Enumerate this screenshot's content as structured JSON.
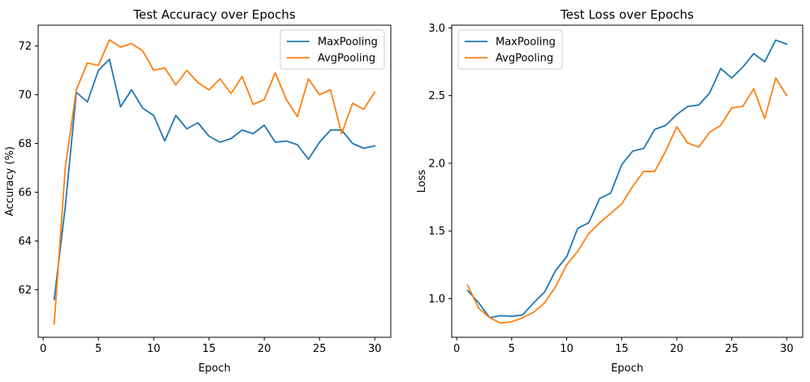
{
  "chart_data": [
    {
      "type": "line",
      "title": "Test Accuracy over Epochs",
      "xlabel": "Epoch",
      "ylabel": "Accuracy (%)",
      "xlim": [
        -0.45,
        31.45
      ],
      "ylim": [
        60.05,
        72.85
      ],
      "xticks": [
        0,
        5,
        10,
        15,
        20,
        25,
        30
      ],
      "xtick_labels": [
        "0",
        "5",
        "10",
        "15",
        "20",
        "25",
        "30"
      ],
      "yticks": [
        62,
        64,
        66,
        68,
        70,
        72
      ],
      "ytick_labels": [
        "62",
        "64",
        "66",
        "68",
        "70",
        "72"
      ],
      "legend": "upper right",
      "grid": false,
      "x": [
        1,
        2,
        3,
        4,
        5,
        6,
        7,
        8,
        9,
        10,
        11,
        12,
        13,
        14,
        15,
        16,
        17,
        18,
        19,
        20,
        21,
        22,
        23,
        24,
        25,
        26,
        27,
        28,
        29,
        30
      ],
      "series": [
        {
          "name": "MaxPooling",
          "color": "#1f77b4",
          "values": [
            61.6,
            65.4,
            70.1,
            69.7,
            71.0,
            71.45,
            69.5,
            70.2,
            69.45,
            69.15,
            68.1,
            69.15,
            68.6,
            68.85,
            68.3,
            68.05,
            68.2,
            68.55,
            68.4,
            68.75,
            68.05,
            68.1,
            67.95,
            67.35,
            68.05,
            68.55,
            68.55,
            68.0,
            67.8,
            67.9
          ]
        },
        {
          "name": "AvgPooling",
          "color": "#ff7f0e",
          "values": [
            60.6,
            67.0,
            70.2,
            71.3,
            71.2,
            72.25,
            71.95,
            72.1,
            71.8,
            71.0,
            71.1,
            70.4,
            71.0,
            70.5,
            70.2,
            70.65,
            70.05,
            70.75,
            69.6,
            69.8,
            70.9,
            69.8,
            69.1,
            70.65,
            70.0,
            70.2,
            68.4,
            69.65,
            69.4,
            70.1
          ]
        }
      ]
    },
    {
      "type": "line",
      "title": "Test Loss over Epochs",
      "xlabel": "Epoch",
      "ylabel": "Loss",
      "xlim": [
        -0.45,
        31.45
      ],
      "ylim": [
        0.715,
        3.02
      ],
      "xticks": [
        0,
        5,
        10,
        15,
        20,
        25,
        30
      ],
      "xtick_labels": [
        "0",
        "5",
        "10",
        "15",
        "20",
        "25",
        "30"
      ],
      "yticks": [
        1.0,
        1.5,
        2.0,
        2.5,
        3.0
      ],
      "ytick_labels": [
        "1.0",
        "1.5",
        "2.0",
        "2.5",
        "3.0"
      ],
      "legend": "upper left",
      "grid": false,
      "x": [
        1,
        2,
        3,
        4,
        5,
        6,
        7,
        8,
        9,
        10,
        11,
        12,
        13,
        14,
        15,
        16,
        17,
        18,
        19,
        20,
        21,
        22,
        23,
        24,
        25,
        26,
        27,
        28,
        29,
        30
      ],
      "series": [
        {
          "name": "MaxPooling",
          "color": "#1f77b4",
          "values": [
            1.06,
            0.97,
            0.86,
            0.875,
            0.87,
            0.88,
            0.97,
            1.05,
            1.21,
            1.31,
            1.52,
            1.56,
            1.74,
            1.78,
            1.99,
            2.09,
            2.11,
            2.25,
            2.28,
            2.36,
            2.42,
            2.43,
            2.52,
            2.7,
            2.63,
            2.71,
            2.81,
            2.75,
            2.91,
            2.88
          ]
        },
        {
          "name": "AvgPooling",
          "color": "#ff7f0e",
          "values": [
            1.1,
            0.93,
            0.86,
            0.82,
            0.83,
            0.86,
            0.9,
            0.97,
            1.09,
            1.25,
            1.35,
            1.48,
            1.56,
            1.63,
            1.7,
            1.83,
            1.94,
            1.94,
            2.09,
            2.27,
            2.15,
            2.12,
            2.23,
            2.28,
            2.41,
            2.42,
            2.55,
            2.33,
            2.63,
            2.5
          ]
        }
      ]
    }
  ]
}
